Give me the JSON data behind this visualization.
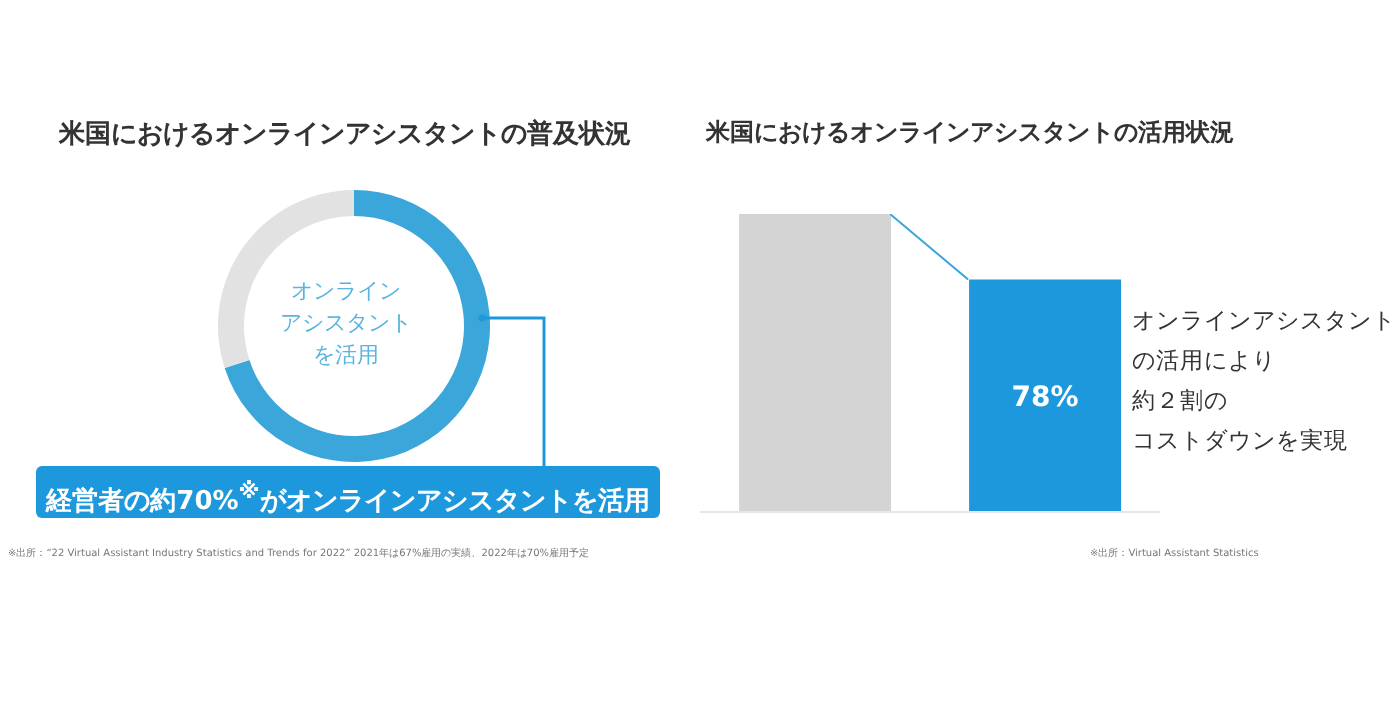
{
  "chart_data": [
    {
      "type": "donut",
      "title": "米国におけるオンラインアシスタントの普及状況",
      "categories": [
        null,
        null
      ],
      "values": [
        70,
        30
      ],
      "colors": [
        "#3aa6d9",
        "#e2e2e2"
      ],
      "annotations": [
        "オンライン",
        "アシスタント",
        "を活用",
        "経営者の約70%$^{※}$がオンラインアシスタントを活用",
        "※出所：“22 Virtual Assistant Industry Statistics and Trends for 2022” 2021年は67%雇用の実績、2022年は70%雇用予定"
      ]
    },
    {
      "type": "bar",
      "title": "米国におけるオンラインアシスタントの活用状況",
      "categories": [
        null,
        null
      ],
      "values": [
        100,
        78
      ],
      "colors": [
        "#d4d4d4",
        "#1e98dc"
      ],
      "value_labels": [
        null,
        "78%"
      ],
      "annotations": [
        "オンラインアシスタント",
        "の活用により",
        "約２割の",
        "コストダウンを実現",
        "※出所：Virtual Assistant Statistics"
      ]
    }
  ]
}
